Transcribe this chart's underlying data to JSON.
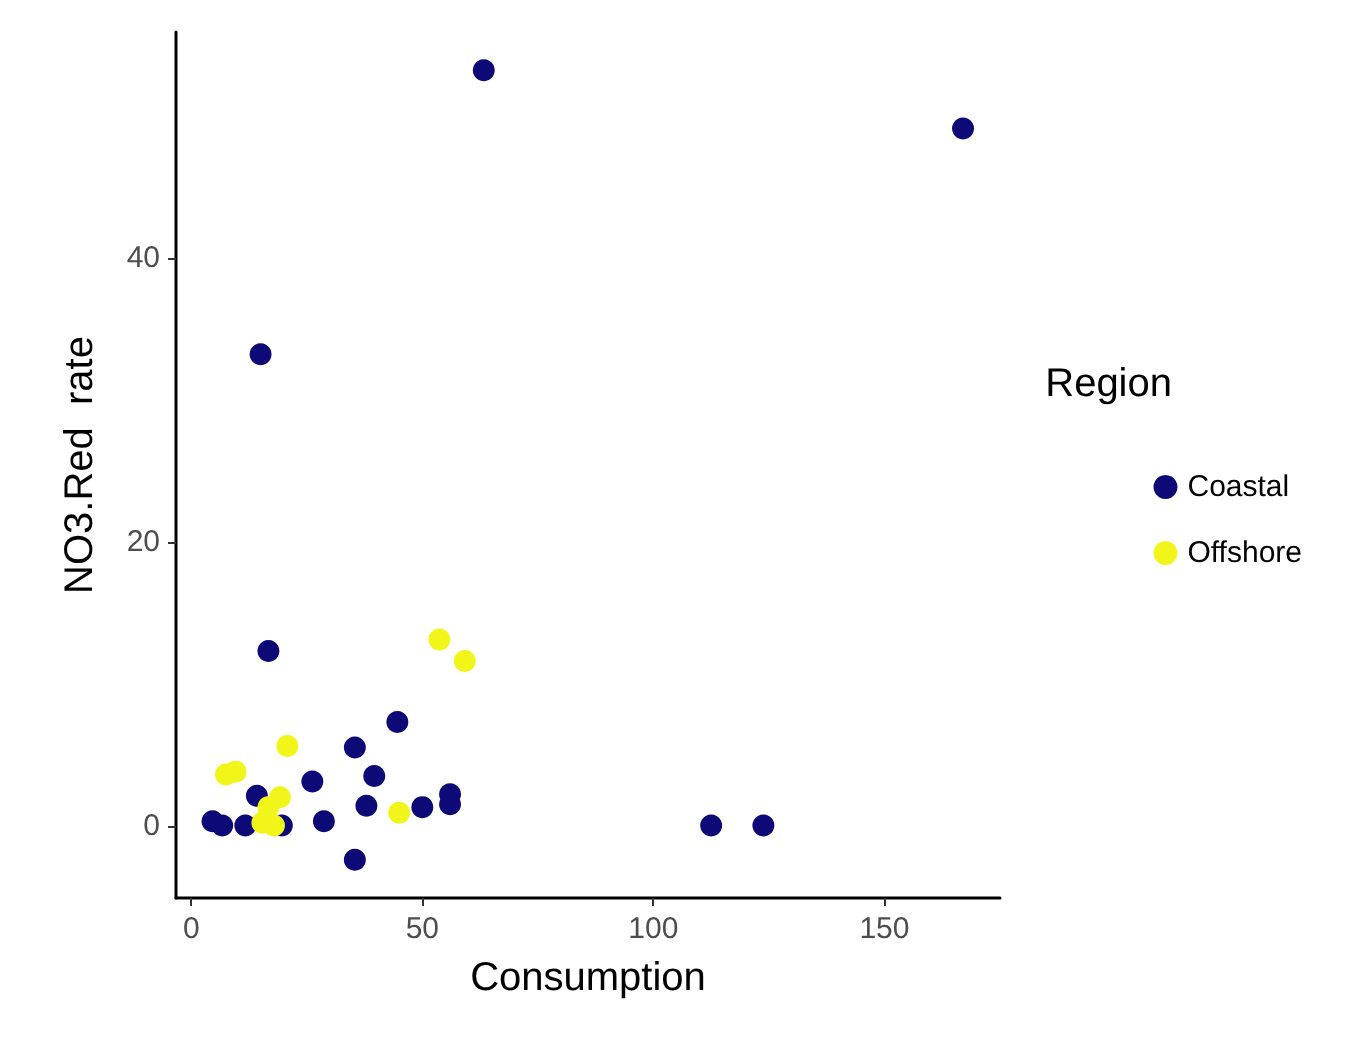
{
  "chart_data": {
    "type": "scatter",
    "xlabel": "Consumption",
    "ylabel": "NO3.Red  rate",
    "legend_title": "Region",
    "legend": "right",
    "grid": false,
    "marker": "circle",
    "xlim": [
      -3.3,
      175
    ],
    "xticks": [
      0,
      50,
      100,
      150
    ],
    "ylim": [
      -5.1,
      55.9
    ],
    "yticks": [
      0,
      20,
      40
    ],
    "series": [
      {
        "name": "Coastal",
        "color": "#0d0a78",
        "x": [
          63.3,
          167,
          15,
          16.7,
          44.6,
          35.4,
          39.6,
          26.2,
          14.2,
          37.9,
          50,
          56,
          56,
          4.6,
          6.7,
          11.7,
          19.6,
          28.7,
          35.4,
          112.5,
          123.8
        ],
        "values": [
          53.2,
          49.1,
          33.2,
          12.3,
          7.3,
          5.5,
          3.5,
          3.1,
          2.1,
          1.4,
          1.3,
          2.2,
          1.5,
          0.3,
          0,
          0,
          0,
          0.3,
          -2.4,
          0,
          0
        ]
      },
      {
        "name": "Offshore",
        "color": "#f2f51a",
        "x": [
          53.7,
          59.2,
          20.8,
          7.5,
          9.6,
          19.2,
          16.7,
          15.4,
          17.9,
          45
        ],
        "values": [
          13.1,
          11.6,
          5.6,
          3.6,
          3.8,
          2,
          1.3,
          0.2,
          0,
          0.9
        ]
      }
    ]
  }
}
